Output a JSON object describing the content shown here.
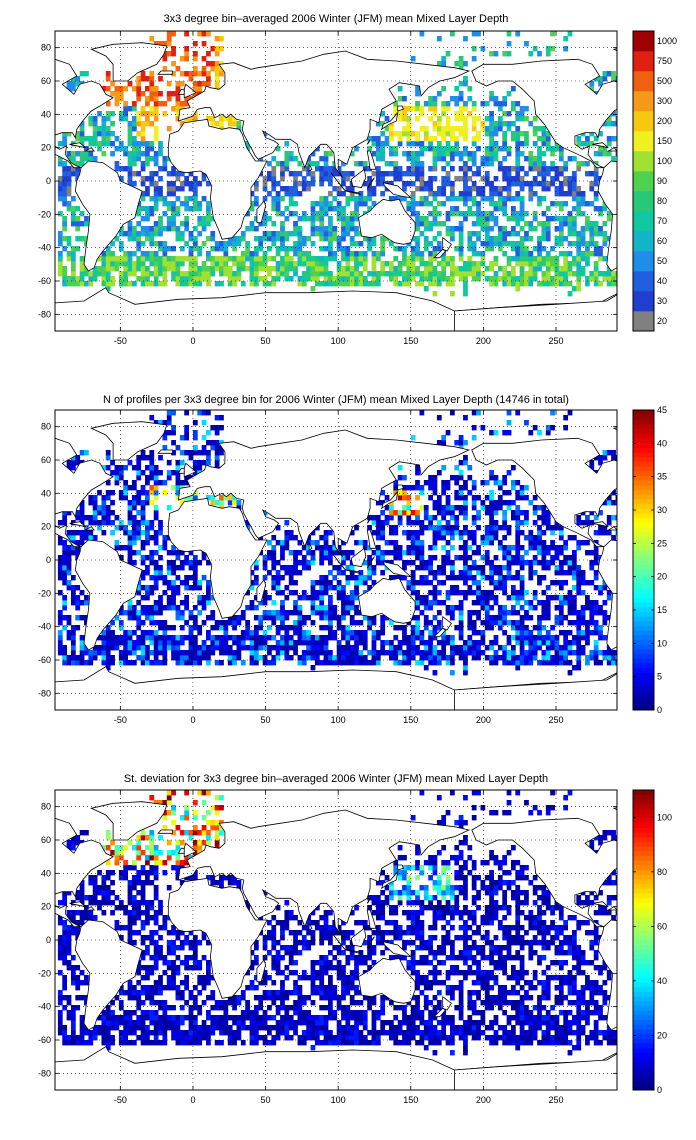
{
  "chart_data": [
    {
      "type": "heatmap",
      "title": "3x3 degree bin–averaged 2006 Winter (JFM) mean Mixed Layer Depth",
      "xlim": [
        -95,
        292
      ],
      "ylim": [
        -90,
        90
      ],
      "xticks": [
        -50,
        0,
        50,
        100,
        150,
        200,
        250
      ],
      "yticks": [
        80,
        60,
        40,
        20,
        0,
        -20,
        -40,
        -60,
        -80
      ],
      "grid": true,
      "colorbar": {
        "type": "discrete",
        "labels": [
          "20",
          "30",
          "40",
          "50",
          "60",
          "70",
          "80",
          "90",
          "100",
          "150",
          "200",
          "300",
          "500",
          "750",
          "1000"
        ],
        "colors": [
          "#808080",
          "#1f3fd0",
          "#2060e0",
          "#1e8ee8",
          "#14b4c8",
          "#10c8a0",
          "#28c878",
          "#50d050",
          "#a0e030",
          "#f0f020",
          "#f8c810",
          "#f89818",
          "#f06010",
          "#e02010",
          "#a00000"
        ]
      }
    },
    {
      "type": "heatmap",
      "title": "N of profiles per 3x3 degree bin for 2006 Winter (JFM) mean Mixed Layer Depth  (14746 in total)",
      "xlim": [
        -95,
        292
      ],
      "ylim": [
        -90,
        90
      ],
      "xticks": [
        -50,
        0,
        50,
        100,
        150,
        200,
        250
      ],
      "yticks": [
        80,
        60,
        40,
        20,
        0,
        -20,
        -40,
        -60,
        -80
      ],
      "grid": true,
      "colorbar": {
        "type": "continuous",
        "range": [
          0,
          45
        ],
        "ticks": [
          0,
          5,
          10,
          15,
          20,
          25,
          30,
          35,
          40,
          45
        ],
        "colormap": "jet"
      }
    },
    {
      "type": "heatmap",
      "title": "St. deviation for 3x3 degree bin–averaged 2006 Winter (JFM) mean Mixed Layer Depth",
      "xlim": [
        -95,
        292
      ],
      "ylim": [
        -90,
        90
      ],
      "xticks": [
        -50,
        0,
        50,
        100,
        150,
        200,
        250
      ],
      "yticks": [
        80,
        60,
        40,
        20,
        0,
        -20,
        -40,
        -60,
        -80
      ],
      "grid": true,
      "colorbar": {
        "type": "continuous",
        "range": [
          0,
          110
        ],
        "ticks": [
          0,
          20,
          40,
          60,
          80,
          100
        ],
        "colormap": "jet"
      }
    }
  ]
}
